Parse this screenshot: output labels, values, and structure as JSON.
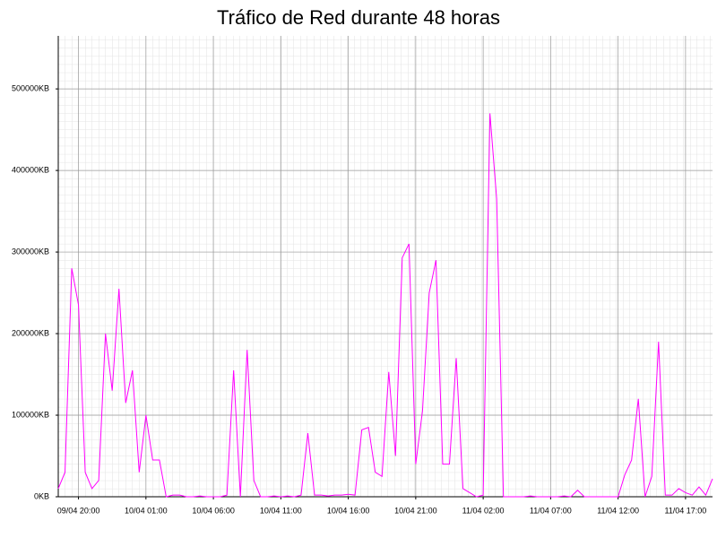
{
  "chart_data": {
    "type": "line",
    "title": "Tráfico de Red durante 48 horas",
    "x": [
      "09/04 18:30",
      "09/04 19:00",
      "09/04 19:30",
      "09/04 20:00",
      "09/04 20:30",
      "09/04 21:00",
      "09/04 21:30",
      "09/04 22:00",
      "09/04 22:30",
      "09/04 23:00",
      "09/04 23:30",
      "10/04 00:00",
      "10/04 00:30",
      "10/04 01:00",
      "10/04 01:30",
      "10/04 02:00",
      "10/04 02:30",
      "10/04 03:00",
      "10/04 03:30",
      "10/04 04:00",
      "10/04 04:30",
      "10/04 05:00",
      "10/04 05:30",
      "10/04 06:00",
      "10/04 06:30",
      "10/04 07:00",
      "10/04 07:30",
      "10/04 08:00",
      "10/04 08:30",
      "10/04 09:00",
      "10/04 09:30",
      "10/04 10:00",
      "10/04 10:30",
      "10/04 11:00",
      "10/04 11:30",
      "10/04 12:00",
      "10/04 12:30",
      "10/04 13:00",
      "10/04 13:30",
      "10/04 14:00",
      "10/04 14:30",
      "10/04 15:00",
      "10/04 15:30",
      "10/04 16:00",
      "10/04 16:30",
      "10/04 17:00",
      "10/04 17:30",
      "10/04 18:00",
      "10/04 18:30",
      "10/04 19:00",
      "10/04 19:30",
      "10/04 20:00",
      "10/04 20:30",
      "10/04 21:00",
      "10/04 21:30",
      "10/04 22:00",
      "10/04 22:30",
      "10/04 23:00",
      "10/04 23:30",
      "11/04 00:00",
      "11/04 00:30",
      "11/04 01:00",
      "11/04 01:30",
      "11/04 02:00",
      "11/04 02:30",
      "11/04 03:00",
      "11/04 03:30",
      "11/04 04:00",
      "11/04 04:30",
      "11/04 05:00",
      "11/04 05:30",
      "11/04 06:00",
      "11/04 06:30",
      "11/04 07:00",
      "11/04 07:30",
      "11/04 08:00",
      "11/04 08:30",
      "11/04 09:00",
      "11/04 09:30",
      "11/04 10:00",
      "11/04 10:30",
      "11/04 11:00",
      "11/04 11:30",
      "11/04 12:00",
      "11/04 12:30",
      "11/04 13:00",
      "11/04 13:30",
      "11/04 14:00",
      "11/04 14:30",
      "11/04 15:00",
      "11/04 15:30",
      "11/04 16:00",
      "11/04 16:30",
      "11/04 17:00",
      "11/04 17:30",
      "11/04 18:00",
      "11/04 18:30",
      "11/04 19:00"
    ],
    "values": [
      10000,
      30000,
      280000,
      235000,
      30000,
      10000,
      20000,
      200000,
      130000,
      255000,
      115000,
      155000,
      30000,
      100000,
      45000,
      45000,
      0,
      2000,
      2000,
      0,
      0,
      1000,
      0,
      0,
      0,
      2000,
      155000,
      0,
      180000,
      20000,
      0,
      0,
      1000,
      0,
      1000,
      0,
      2000,
      78000,
      2000,
      2000,
      1000,
      2000,
      2000,
      3000,
      2000,
      82000,
      85000,
      30000,
      25000,
      153000,
      50000,
      293000,
      310000,
      40000,
      105000,
      250000,
      290000,
      40000,
      40000,
      170000,
      10000,
      5000,
      0,
      2000,
      470000,
      365000,
      0,
      0,
      0,
      0,
      1000,
      0,
      0,
      0,
      0,
      1000,
      0,
      8000,
      0,
      0,
      0,
      0,
      0,
      0,
      27000,
      45000,
      120000,
      0,
      25000,
      190000,
      2000,
      2000,
      10000,
      5000,
      2000,
      12000,
      2000,
      22000
    ],
    "color": "#ff00ff",
    "xlim": [
      "09/04 18:30",
      "11/04 19:00"
    ],
    "xticks": [
      "09/04 20:00",
      "10/04 01:00",
      "10/04 06:00",
      "10/04 11:00",
      "10/04 16:00",
      "10/04 21:00",
      "11/04 02:00",
      "11/04 07:00",
      "11/04 12:00",
      "11/04 17:00"
    ],
    "ylim": [
      0,
      565000
    ],
    "yticks": [
      {
        "value": 0,
        "label": "0KB"
      },
      {
        "value": 100000,
        "label": "100000KB"
      },
      {
        "value": 200000,
        "label": "200000KB"
      },
      {
        "value": 300000,
        "label": "300000KB"
      },
      {
        "value": 400000,
        "label": "400000KB"
      },
      {
        "value": 500000,
        "label": "500000KB"
      }
    ],
    "grid": true
  }
}
